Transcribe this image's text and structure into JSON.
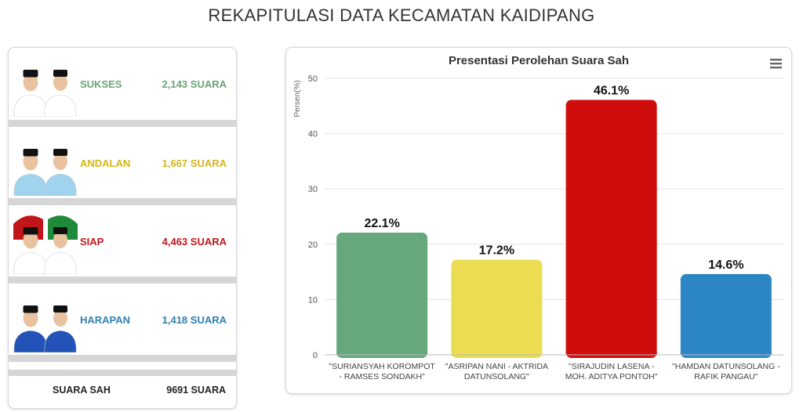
{
  "page_title": "REKAPITULASI DATA KECAMATAN KAIDIPANG",
  "candidates": [
    {
      "name": "SUKSES",
      "votes": "2,143 SUARA",
      "color": "#6aa57a",
      "cap": "#111111",
      "shirt": "#ffffff"
    },
    {
      "name": "ANDALAN",
      "votes": "1,667 SUARA",
      "color": "#d4b51a",
      "cap": "#111111",
      "shirt": "#9fd3ee"
    },
    {
      "name": "SIAP",
      "votes": "4,463 SUARA",
      "color": "#c0161a",
      "cap": "#111111",
      "shirt": "#ffffff"
    },
    {
      "name": "HARAPAN",
      "votes": "1,418 SUARA",
      "color": "#2e7fb6",
      "cap": "#111111",
      "shirt": "#2352b8"
    }
  ],
  "total": {
    "label": "SUARA SAH",
    "value": "9691 SUARA"
  },
  "menu_icon": "hamburger-menu-icon",
  "chart_data": {
    "type": "bar",
    "title": "Presentasi Perolehan Suara Sah",
    "ylabel": "Persen(%)",
    "xlabel": "",
    "ylim": [
      0,
      50
    ],
    "yticks": [
      0,
      10,
      20,
      30,
      40,
      50
    ],
    "grid": true,
    "categories": [
      [
        "\"SURIANSYAH KOROMPOT",
        "- RAMSES SONDAKH\""
      ],
      [
        "\"ASRIPAN NANI - AKTRIDA",
        "DATUNSOLANG\""
      ],
      [
        "\"SIRAJUDIN LASENA -",
        "MOH. ADITYA PONTOH\""
      ],
      [
        "\"HAMDAN DATUNSOLANG -",
        "RAFIK PANGAU\""
      ]
    ],
    "values": [
      22.1,
      17.2,
      46.1,
      14.6
    ],
    "data_labels": [
      "22.1%",
      "17.2%",
      "46.1%",
      "14.6%"
    ],
    "colors": [
      "#66a87b",
      "#ecdc52",
      "#cf0d0d",
      "#2c86c5"
    ]
  }
}
